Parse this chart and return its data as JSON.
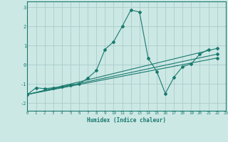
{
  "xlabel": "Humidex (Indice chaleur)",
  "background_color": "#cce8e5",
  "grid_color": "#aaccca",
  "line_color": "#1a7a6e",
  "xlim": [
    0,
    23
  ],
  "ylim": [
    -2.4,
    3.3
  ],
  "x_ticks": [
    0,
    1,
    2,
    3,
    4,
    5,
    6,
    7,
    8,
    9,
    10,
    11,
    12,
    13,
    14,
    15,
    16,
    17,
    18,
    19,
    20,
    21,
    22,
    23
  ],
  "y_ticks": [
    -2,
    -1,
    0,
    1,
    2,
    3
  ],
  "main_line": {
    "x": [
      0,
      1,
      2,
      3,
      4,
      5,
      6,
      7,
      8,
      9,
      10,
      11,
      12,
      13,
      14,
      15,
      16,
      17,
      18,
      19,
      20,
      21
    ],
    "y": [
      -1.55,
      -1.2,
      -1.25,
      -1.2,
      -1.15,
      -1.05,
      -1.0,
      -0.7,
      -0.3,
      0.8,
      1.2,
      2.0,
      2.85,
      2.75,
      0.35,
      -0.35,
      -1.5,
      -0.65,
      -0.1,
      0.05,
      0.55,
      0.8
    ]
  },
  "straight_lines": [
    {
      "x": [
        0,
        22
      ],
      "y": [
        -1.55,
        0.85
      ]
    },
    {
      "x": [
        0,
        22
      ],
      "y": [
        -1.55,
        0.55
      ]
    },
    {
      "x": [
        0,
        22
      ],
      "y": [
        -1.55,
        0.35
      ]
    }
  ]
}
